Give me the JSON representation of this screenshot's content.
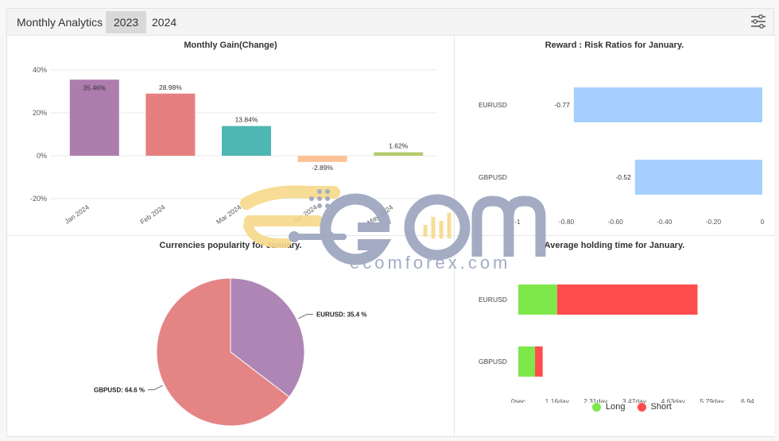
{
  "header": {
    "title": "Monthly Analytics",
    "years": [
      "2023",
      "2024"
    ],
    "active_year_index": 0,
    "settings_icon": "sliders-icon"
  },
  "watermark": {
    "text": "ecomforex.com"
  },
  "colors": {
    "long": "#7ee84b",
    "short": "#ff4d4d",
    "risk_bar": "#a6cfff"
  },
  "chart_data": [
    {
      "id": "monthly_gain",
      "type": "bar",
      "title": "Monthly Gain(Change)",
      "categories": [
        "Jan 2024",
        "Feb 2024",
        "Mar 2024",
        "Apr 2024",
        "May 2024"
      ],
      "values": [
        35.46,
        28.98,
        13.84,
        -2.89,
        1.62
      ],
      "data_labels": [
        "35.46%",
        "28.98%",
        "13.84%",
        "-2.89%",
        "1.62%"
      ],
      "colors": [
        "#ad7dae",
        "#e67f7f",
        "#4fb7b3",
        "#fcc196",
        "#b5cd6e"
      ],
      "yticks": [
        "40%",
        "20%",
        "0%",
        "-20%"
      ],
      "ytick_values": [
        40,
        20,
        0,
        -20
      ],
      "ylim": [
        -20,
        40
      ],
      "grid": true
    },
    {
      "id": "reward_risk",
      "type": "bar",
      "orientation": "horizontal",
      "title": "Reward : Risk Ratios for January.",
      "categories": [
        "EURUSD",
        "GBPUSD"
      ],
      "values": [
        -0.77,
        -0.52
      ],
      "data_labels": [
        "-0.77",
        "-0.52"
      ],
      "xticks": [
        "-1",
        "-0.80",
        "-0.60",
        "-0.40",
        "-0.20",
        "0"
      ],
      "xtick_values": [
        -1,
        -0.8,
        -0.6,
        -0.4,
        -0.2,
        0
      ],
      "xlim": [
        -1,
        0
      ]
    },
    {
      "id": "currency_popularity",
      "type": "pie",
      "title": "Currencies popularity for January.",
      "labels": [
        "EURUSD",
        "GBPUSD"
      ],
      "values": [
        35.4,
        64.6
      ],
      "data_labels": [
        "EURUSD: 35.4 %",
        "GBPUSD: 64.6 %"
      ],
      "colors": [
        "#ad86b6",
        "#e48484"
      ]
    },
    {
      "id": "holding_time",
      "type": "bar",
      "orientation": "horizontal",
      "stacked": true,
      "title": "Average holding time for January.",
      "categories": [
        "EURUSD",
        "GBPUSD"
      ],
      "series": [
        {
          "name": "Long",
          "values": [
            1.16,
            0.5
          ]
        },
        {
          "name": "Short",
          "values": [
            4.2,
            0.23
          ]
        }
      ],
      "xticks": [
        "0sec",
        "1.16day",
        "2.31day",
        "3.47day",
        "4.63day",
        "5.79day",
        "6.94..."
      ],
      "xtick_values": [
        0,
        1.16,
        2.31,
        3.47,
        4.63,
        5.79,
        6.94
      ],
      "xlim": [
        0,
        6.94
      ],
      "legend": "bottom"
    }
  ]
}
